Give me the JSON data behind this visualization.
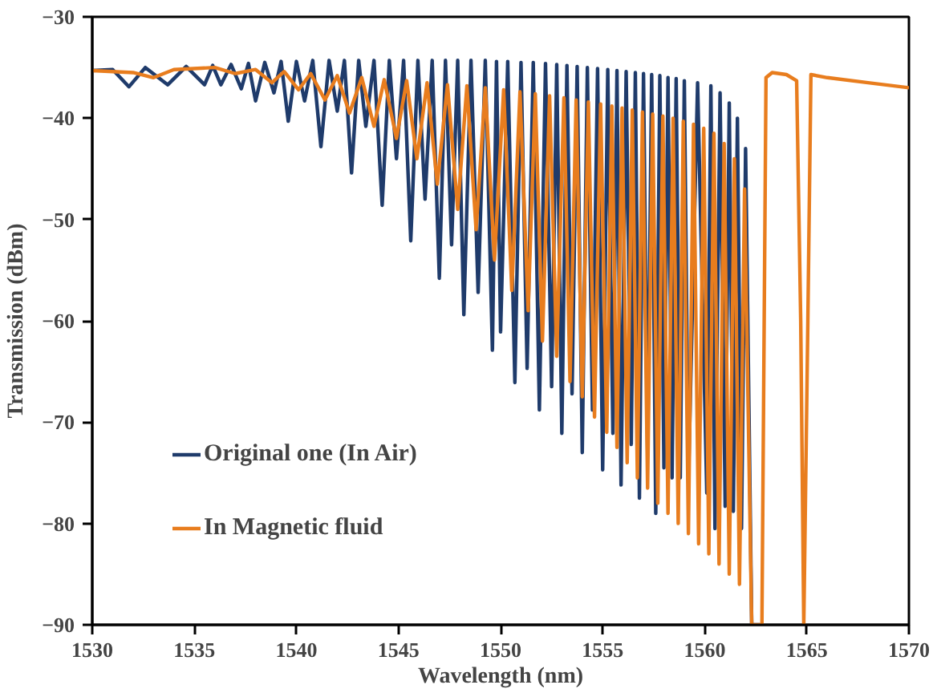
{
  "chart_data": {
    "type": "line",
    "xlabel": "Wavelength (nm)",
    "ylabel": "Transmission (dBm)",
    "xlim": [
      1530,
      1570
    ],
    "ylim": [
      -90,
      -30
    ],
    "xticks": [
      1530,
      1535,
      1540,
      1545,
      1550,
      1555,
      1560,
      1565,
      1570
    ],
    "yticks": [
      -90,
      -80,
      -70,
      -60,
      -50,
      -40,
      -30
    ],
    "grid": false,
    "legend": "bottom left",
    "marker": "none",
    "line_style": "solid",
    "series": [
      {
        "name": "Original one (In Air)",
        "color": "#1f3b6b",
        "x": [
          1530,
          1531,
          1531.8,
          1532.6,
          1533.7,
          1534.6,
          1535.5,
          1535.9,
          1536.3,
          1536.8,
          1537.3,
          1537.65,
          1538.0,
          1538.45,
          1538.9,
          1539.25,
          1539.6,
          1540.0,
          1540.4,
          1540.8,
          1541.2,
          1541.6,
          1542.0,
          1542.35,
          1542.7,
          1543.05,
          1543.4,
          1543.8,
          1544.2,
          1544.55,
          1544.9,
          1545.25,
          1545.6,
          1545.95,
          1546.3,
          1546.65,
          1547.0,
          1547.3,
          1547.6,
          1547.9,
          1548.2,
          1548.55,
          1548.9,
          1549.25,
          1549.6,
          1549.8,
          1550.0,
          1550.35,
          1550.7,
          1551.0,
          1551.3,
          1551.6,
          1551.9,
          1552.2,
          1552.5,
          1552.75,
          1553.0,
          1553.25,
          1553.5,
          1553.75,
          1554.0,
          1554.25,
          1554.5,
          1554.75,
          1555.0,
          1555.25,
          1555.5,
          1555.7,
          1555.9,
          1556.15,
          1556.4,
          1556.6,
          1556.8,
          1557.0,
          1557.2,
          1557.4,
          1557.6,
          1557.8,
          1558.0,
          1558.2,
          1558.4,
          1558.6,
          1558.8,
          1559.0,
          1559.2,
          1559.65,
          1560.1,
          1560.3,
          1560.5,
          1560.75,
          1561.0,
          1561.2,
          1561.4,
          1561.6,
          1561.8,
          1562.0,
          1562.3,
          1562.7
        ],
        "values": [
          -35.3,
          -35.2,
          -36.9,
          -35.0,
          -36.7,
          -34.9,
          -36.7,
          -34.8,
          -36.7,
          -34.7,
          -37.1,
          -34.6,
          -38.3,
          -34.5,
          -37.5,
          -34.4,
          -40.3,
          -34.4,
          -38.3,
          -34.3,
          -42.8,
          -34.3,
          -39.3,
          -34.3,
          -45.4,
          -34.3,
          -40.8,
          -34.3,
          -48.6,
          -34.3,
          -44,
          -34.3,
          -52.1,
          -34.3,
          -48,
          -34.3,
          -55.8,
          -34.3,
          -52.5,
          -34.3,
          -59.4,
          -34.3,
          -57.2,
          -34.3,
          -62.9,
          -34.4,
          -61.1,
          -34.4,
          -66.1,
          -34.5,
          -64.7,
          -34.5,
          -68.8,
          -34.6,
          -66.5,
          -34.7,
          -71.1,
          -34.8,
          -67.2,
          -34.9,
          -73,
          -35.0,
          -68.8,
          -35.1,
          -74.7,
          -35.2,
          -71.1,
          -35.3,
          -76.2,
          -35.4,
          -72.2,
          -35.5,
          -77.5,
          -35.6,
          -73.2,
          -35.7,
          -79,
          -35.8,
          -74.5,
          -36.0,
          -75.5,
          -36.1,
          -75.5,
          -36.3,
          -75.8,
          -36.5,
          -77,
          -36.8,
          -80.5,
          -37.5,
          -78.3,
          -38.5,
          -78.8,
          -40,
          -80.5,
          -43,
          -90,
          -90
        ]
      },
      {
        "name": "In Magnetic fluid",
        "color": "#e87d1e",
        "x": [
          1530,
          1532,
          1533,
          1534,
          1536,
          1537,
          1538,
          1538.8,
          1539.4,
          1540.1,
          1540.7,
          1541.4,
          1542,
          1542.6,
          1543.2,
          1543.8,
          1544.3,
          1544.9,
          1545.4,
          1545.9,
          1546.4,
          1546.9,
          1547.4,
          1547.9,
          1548.35,
          1548.8,
          1549.25,
          1549.7,
          1550.15,
          1550.55,
          1550.95,
          1551.35,
          1551.7,
          1552.05,
          1552.4,
          1552.75,
          1553.1,
          1553.4,
          1553.7,
          1554.0,
          1554.3,
          1554.6,
          1554.9,
          1555.2,
          1555.45,
          1555.7,
          1555.95,
          1556.2,
          1556.45,
          1556.7,
          1556.95,
          1557.2,
          1557.45,
          1557.7,
          1557.95,
          1558.2,
          1558.45,
          1558.7,
          1558.95,
          1559.2,
          1559.45,
          1559.7,
          1559.95,
          1560.2,
          1560.45,
          1560.7,
          1560.95,
          1561.2,
          1561.45,
          1561.7,
          1561.95,
          1562.3,
          1562.8,
          1563.0,
          1563.3,
          1564.0,
          1564.5,
          1564.7,
          1564.85,
          1565.05,
          1565.2,
          1566,
          1568,
          1570
        ],
        "values": [
          -35.3,
          -35.5,
          -36,
          -35.2,
          -35.0,
          -35.6,
          -35.2,
          -36.5,
          -35.4,
          -37.2,
          -35.6,
          -38.2,
          -35.8,
          -39.5,
          -36,
          -40.8,
          -36.2,
          -42,
          -36.3,
          -44,
          -36.5,
          -46.5,
          -36.7,
          -49,
          -36.8,
          -51,
          -37,
          -54,
          -37.2,
          -57,
          -37.4,
          -59,
          -37.6,
          -62,
          -37.8,
          -63.5,
          -38,
          -66,
          -38.2,
          -67.5,
          -38.4,
          -69.5,
          -38.6,
          -71,
          -38.8,
          -72.5,
          -39,
          -74,
          -39.2,
          -75.5,
          -39.4,
          -76.5,
          -39.6,
          -78,
          -39.8,
          -79,
          -40,
          -80,
          -40.3,
          -81,
          -40.6,
          -82,
          -41,
          -83,
          -41.5,
          -84,
          -42.5,
          -85,
          -44,
          -86,
          -47,
          -90,
          -90,
          -36,
          -35.5,
          -35.7,
          -36.3,
          -60,
          -90,
          -60,
          -35.7,
          -36.0,
          -36.5,
          -37
        ]
      }
    ]
  }
}
